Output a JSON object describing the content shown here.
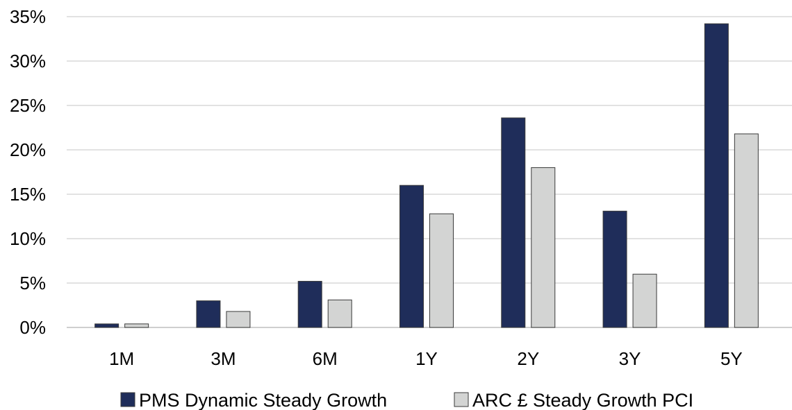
{
  "chart_data": {
    "type": "bar",
    "categories": [
      "1M",
      "3M",
      "6M",
      "1Y",
      "2Y",
      "3Y",
      "5Y"
    ],
    "series": [
      {
        "name": "PMS Dynamic Steady Growth",
        "values": [
          0.4,
          3.0,
          5.2,
          16.0,
          23.6,
          13.1,
          34.2
        ],
        "color": "#1f2d5a"
      },
      {
        "name": "ARC £ Steady Growth PCI",
        "values": [
          0.4,
          1.8,
          3.1,
          12.8,
          18.0,
          6.0,
          21.8
        ],
        "color": "#d3d4d3"
      }
    ],
    "y_ticks": [
      "0%",
      "5%",
      "10%",
      "15%",
      "20%",
      "25%",
      "30%",
      "35%"
    ],
    "ylim": [
      0,
      35
    ],
    "grid": true,
    "legend_position": "bottom"
  }
}
